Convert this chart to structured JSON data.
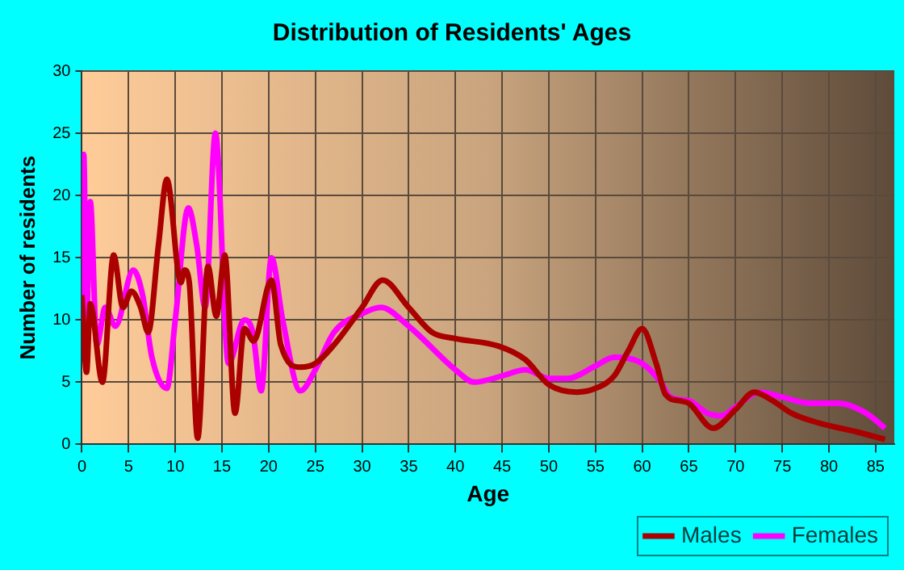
{
  "chart_data": {
    "type": "line",
    "title": "Distribution of Residents' Ages",
    "xlabel": "Age",
    "ylabel": "Number of residents",
    "xlim": [
      0,
      87
    ],
    "xticks": [
      0,
      5,
      10,
      15,
      20,
      25,
      30,
      35,
      40,
      45,
      50,
      55,
      60,
      65,
      70,
      75,
      80,
      85
    ],
    "ylim": [
      0,
      30
    ],
    "yticks": [
      0,
      5,
      10,
      15,
      20,
      25,
      30
    ],
    "grid": true,
    "legend": "bottom right",
    "marker": "none",
    "line_style": "solid",
    "series": [
      {
        "name": "Males",
        "color": "#aa0000",
        "x": [
          0,
          0.5,
          0.9,
          2.2,
          3.4,
          4.4,
          5.3,
          6.3,
          7.1,
          8.2,
          9.1,
          10.6,
          11,
          11.5,
          12.4,
          13.5,
          14.4,
          15.3,
          16.4,
          17.4,
          18.4,
          20.3,
          21.3,
          23.4,
          25,
          27,
          30,
          32.2,
          35,
          37.5,
          40,
          44.6,
          47.5,
          50,
          53,
          55,
          57,
          58.5,
          60,
          61.5,
          62.5,
          64,
          65,
          67.6,
          70,
          72,
          74,
          76,
          79,
          83,
          86
        ],
        "values": [
          12,
          5.8,
          11.3,
          5,
          15.2,
          11,
          12.3,
          11,
          9,
          16,
          21.3,
          13,
          14,
          13,
          0.5,
          14.3,
          10.3,
          15.2,
          2.5,
          9.3,
          8.3,
          13.2,
          8,
          6.2,
          6.5,
          8,
          11,
          13.2,
          11,
          9,
          8.5,
          7.9,
          6.8,
          4.8,
          4.2,
          4.5,
          5.5,
          7.5,
          9.3,
          6.5,
          4,
          3.5,
          3.3,
          1.3,
          2.8,
          4.2,
          3.5,
          2.5,
          1.7,
          1,
          0.4
        ]
      },
      {
        "name": "Females",
        "color": "#ff00ff",
        "x": [
          0,
          0.2,
          0.5,
          0.9,
          1.6,
          2.5,
          3.6,
          5.5,
          6.5,
          7.5,
          9.1,
          10,
          11.4,
          12.3,
          13.2,
          14.3,
          15.7,
          17.4,
          18.3,
          19.2,
          20.3,
          21.5,
          23.4,
          25,
          27,
          30,
          32,
          35,
          40,
          42,
          45,
          47.5,
          50,
          52,
          55,
          57,
          60,
          62,
          63,
          65,
          67,
          68.5,
          70,
          72.5,
          75,
          78,
          81,
          84,
          86
        ],
        "values": [
          10,
          23.3,
          10,
          19.5,
          8,
          11,
          9.5,
          14,
          12,
          7,
          4.5,
          10,
          19,
          16,
          11,
          25,
          6.5,
          10,
          9,
          4.3,
          15,
          10,
          4.3,
          6,
          9,
          10.5,
          11,
          9.5,
          6,
          5,
          5.5,
          6,
          5.3,
          5.3,
          6.3,
          7,
          6.5,
          5,
          3.8,
          3.5,
          2.5,
          2.3,
          3,
          4.2,
          3.8,
          3.3,
          3.3,
          2.5,
          1.3
        ]
      }
    ]
  }
}
